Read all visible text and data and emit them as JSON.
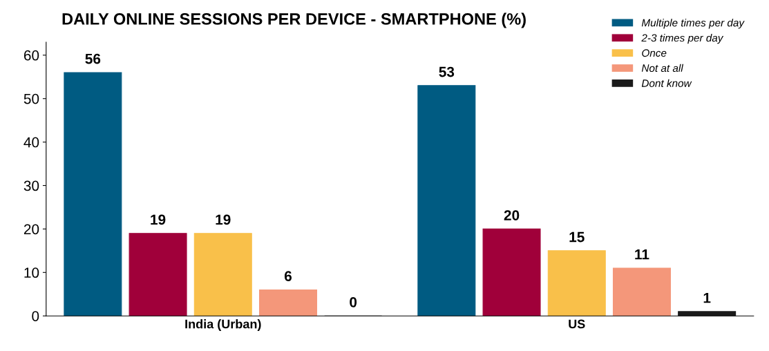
{
  "chart_data": {
    "type": "bar",
    "title": "DAILY ONLINE SESSIONS PER DEVICE - SMARTPHONE (%)",
    "categories": [
      "India (Urban)",
      "US"
    ],
    "series": [
      {
        "name": "Multiple times per day",
        "color": "#005b82",
        "values": [
          56,
          53
        ]
      },
      {
        "name": "2-3 times per day",
        "color": "#a0003a",
        "values": [
          19,
          20
        ]
      },
      {
        "name": "Once",
        "color": "#f9c04a",
        "values": [
          19,
          15
        ]
      },
      {
        "name": "Not at all",
        "color": "#f4977a",
        "values": [
          6,
          11
        ]
      },
      {
        "name": "Dont know",
        "color": "#1a1a1a",
        "values": [
          0,
          1
        ]
      }
    ],
    "ylim": [
      0,
      63
    ],
    "yticks": [
      0,
      10,
      20,
      30,
      40,
      50,
      60
    ],
    "data_labels": true,
    "legend": "top right",
    "grid": false
  }
}
